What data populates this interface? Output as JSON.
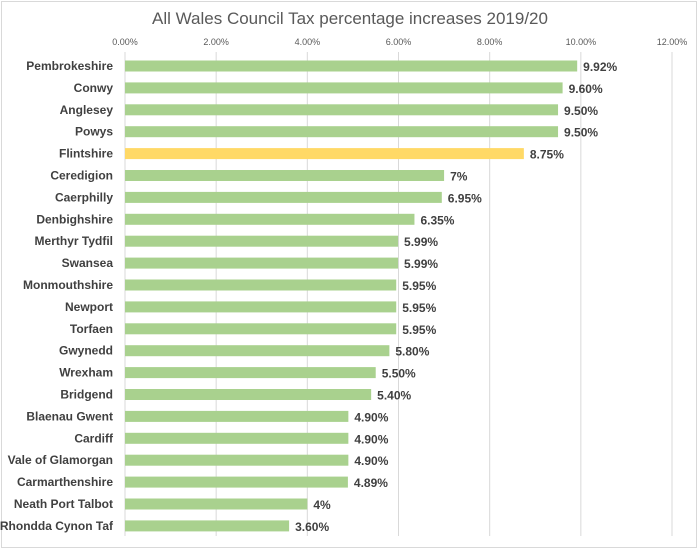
{
  "chart_data": {
    "type": "bar",
    "orientation": "horizontal",
    "title": "All Wales Council Tax percentage increases 2019/20",
    "xlabel": "",
    "ylabel": "",
    "xlim": [
      0,
      12
    ],
    "ticks": [
      {
        "value": 0,
        "label": "0.00%"
      },
      {
        "value": 2,
        "label": "2.00%"
      },
      {
        "value": 4,
        "label": "4.00%"
      },
      {
        "value": 6,
        "label": "6.00%"
      },
      {
        "value": 8,
        "label": "8.00%"
      },
      {
        "value": 10,
        "label": "10.00%"
      },
      {
        "value": 12,
        "label": "12.00%"
      }
    ],
    "grid": true,
    "bar_color": "#a9d18e",
    "highlight_color": "#ffd966",
    "bars": [
      {
        "category": "Pembrokeshire",
        "value": 9.92,
        "label": "9.92%",
        "highlight": false
      },
      {
        "category": "Conwy",
        "value": 9.6,
        "label": "9.60%",
        "highlight": false
      },
      {
        "category": "Anglesey",
        "value": 9.5,
        "label": "9.50%",
        "highlight": false
      },
      {
        "category": "Powys",
        "value": 9.5,
        "label": "9.50%",
        "highlight": false
      },
      {
        "category": "Flintshire",
        "value": 8.75,
        "label": "8.75%",
        "highlight": true
      },
      {
        "category": "Ceredigion",
        "value": 7.0,
        "label": "7%",
        "highlight": false
      },
      {
        "category": "Caerphilly",
        "value": 6.95,
        "label": "6.95%",
        "highlight": false
      },
      {
        "category": "Denbighshire",
        "value": 6.35,
        "label": "6.35%",
        "highlight": false
      },
      {
        "category": "Merthyr Tydfil",
        "value": 5.99,
        "label": "5.99%",
        "highlight": false
      },
      {
        "category": "Swansea",
        "value": 5.99,
        "label": "5.99%",
        "highlight": false
      },
      {
        "category": "Monmouthshire",
        "value": 5.95,
        "label": "5.95%",
        "highlight": false
      },
      {
        "category": "Newport",
        "value": 5.95,
        "label": "5.95%",
        "highlight": false
      },
      {
        "category": "Torfaen",
        "value": 5.95,
        "label": "5.95%",
        "highlight": false
      },
      {
        "category": "Gwynedd",
        "value": 5.8,
        "label": "5.80%",
        "highlight": false
      },
      {
        "category": "Wrexham",
        "value": 5.5,
        "label": "5.50%",
        "highlight": false
      },
      {
        "category": "Bridgend",
        "value": 5.4,
        "label": "5.40%",
        "highlight": false
      },
      {
        "category": "Blaenau Gwent",
        "value": 4.9,
        "label": "4.90%",
        "highlight": false
      },
      {
        "category": "Cardiff",
        "value": 4.9,
        "label": "4.90%",
        "highlight": false
      },
      {
        "category": "Vale of Glamorgan",
        "value": 4.9,
        "label": "4.90%",
        "highlight": false
      },
      {
        "category": "Carmarthenshire",
        "value": 4.89,
        "label": "4.89%",
        "highlight": false
      },
      {
        "category": "Neath Port Talbot",
        "value": 4.0,
        "label": "4%",
        "highlight": false
      },
      {
        "category": "Rhondda Cynon Taf",
        "value": 3.6,
        "label": "3.60%",
        "highlight": false
      }
    ]
  }
}
